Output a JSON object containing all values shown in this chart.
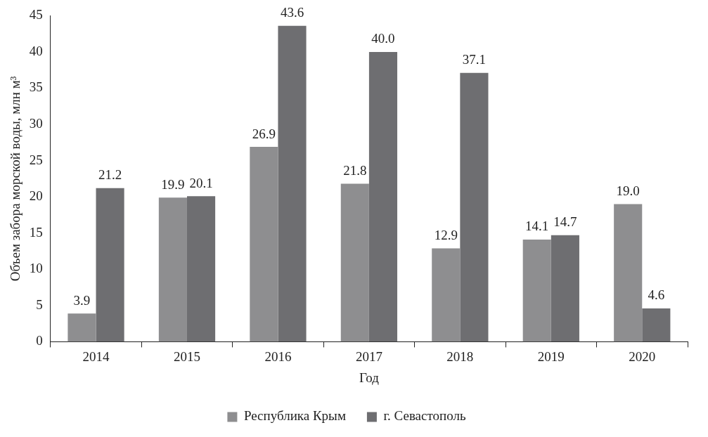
{
  "chart_data": {
    "type": "bar",
    "xlabel": "Год",
    "ylabel": "Объем забора морской воды, млн м³",
    "categories": [
      "2014",
      "2015",
      "2016",
      "2017",
      "2018",
      "2019",
      "2020"
    ],
    "series": [
      {
        "name": "Республика Крым",
        "color": "#8e8e90",
        "values": [
          3.9,
          19.9,
          26.9,
          21.8,
          12.9,
          14.1,
          19.0
        ],
        "value_labels": [
          "3.9",
          "19.9",
          "26.9",
          "21.8",
          "12.9",
          "14.1",
          "19.0"
        ]
      },
      {
        "name": "г. Севастополь",
        "color": "#6e6e71",
        "values": [
          21.2,
          20.1,
          43.6,
          40.0,
          37.1,
          14.7,
          4.6
        ],
        "value_labels": [
          "21.2",
          "20.1",
          "43.6",
          "40.0",
          "37.1",
          "14.7",
          "4.6"
        ]
      }
    ],
    "ylim": [
      0,
      45
    ],
    "yticks": [
      0,
      5,
      10,
      15,
      20,
      25,
      30,
      35,
      40,
      45
    ],
    "grid": false,
    "legend": "bottom"
  }
}
